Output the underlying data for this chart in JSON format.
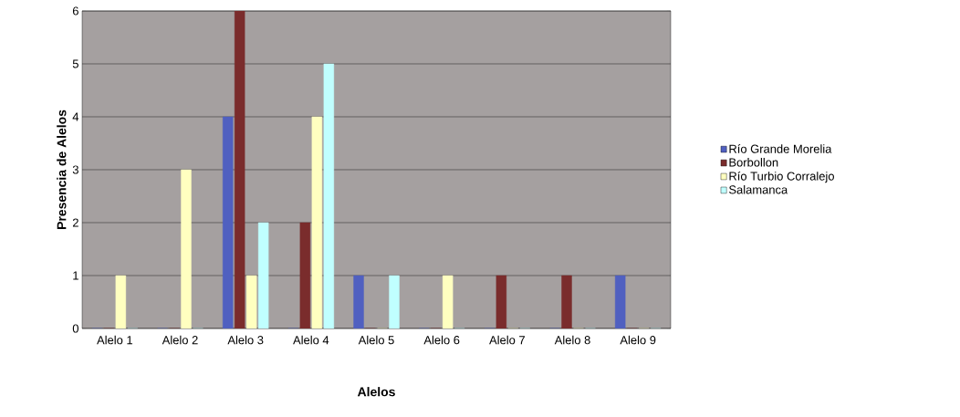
{
  "chart_data": {
    "type": "bar",
    "xlabel": "Alelos",
    "ylabel": "Presencia de Alelos",
    "categories": [
      "Alelo 1",
      "Alelo 2",
      "Alelo 3",
      "Alelo 4",
      "Alelo 5",
      "Alelo 6",
      "Alelo 7",
      "Alelo 8",
      "Alelo 9"
    ],
    "series": [
      {
        "name": "Río Grande Morelia",
        "color": "#5060c0",
        "values": [
          0,
          0,
          4,
          0,
          1,
          0,
          0,
          0,
          1
        ]
      },
      {
        "name": "Borbollon",
        "color": "#7a2c2c",
        "values": [
          0,
          0,
          6,
          2,
          0,
          0,
          1,
          1,
          0
        ]
      },
      {
        "name": "Río Turbio Corralejo",
        "color": "#ffffc0",
        "values": [
          1,
          3,
          1,
          4,
          0,
          1,
          0,
          0,
          0
        ]
      },
      {
        "name": "Salamanca",
        "color": "#c0ffff",
        "values": [
          0,
          0,
          2,
          5,
          1,
          0,
          0,
          0,
          0
        ]
      }
    ],
    "ylim": [
      0,
      6
    ],
    "yticks": [
      0,
      1,
      2,
      3,
      4,
      5,
      6
    ],
    "grid": "y",
    "legend": "right"
  }
}
